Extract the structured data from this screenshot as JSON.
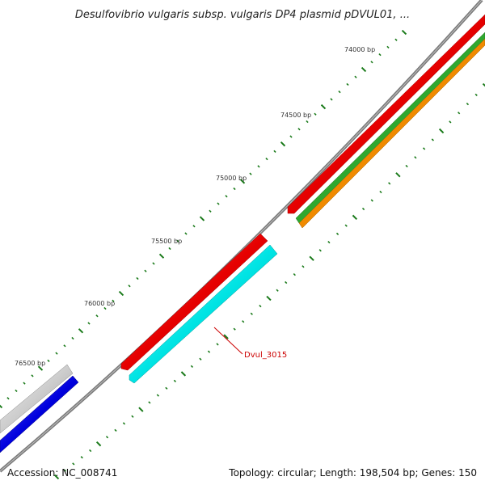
{
  "title": "Desulfovibrio vulgaris subsp. vulgaris DP4 plasmid pDVUL01, ...",
  "accession_text": "Accession: NC_008741",
  "summary_text": "Topology: circular; Length: 198,504 bp; Genes: 150",
  "ticks": [
    {
      "label": "74000 bp"
    },
    {
      "label": "74500 bp"
    },
    {
      "label": "75000 bp"
    },
    {
      "label": "75500 bp"
    },
    {
      "label": "76000 bp"
    },
    {
      "label": "76500 bp"
    }
  ],
  "gene_callout": {
    "label": "Dvul_3015"
  },
  "colors": {
    "backbone": "#888888",
    "red": "#e60000",
    "green": "#2fa82f",
    "orange": "#f08a00",
    "cyan": "#00dede",
    "blue": "#0000dd",
    "gray": "#c8c8c8",
    "tick": "#1a7a1a",
    "callout": "#cc0000"
  }
}
